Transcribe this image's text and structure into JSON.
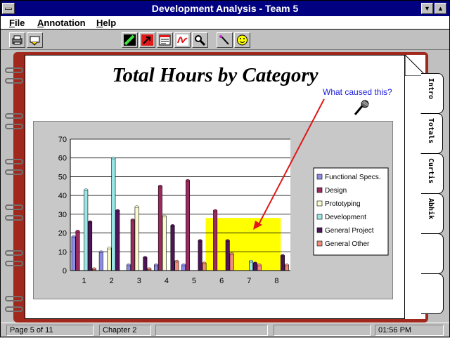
{
  "window": {
    "title": "Development Analysis - Team 5"
  },
  "menu": [
    "File",
    "Annotation",
    "Help"
  ],
  "toolbar": {
    "left_icons": [
      "printer-icon",
      "print-setup-icon"
    ],
    "mid_icons": [
      "highlighter-icon",
      "arrow-tool-icon",
      "note-icon",
      "signature-icon",
      "magnifier-icon"
    ],
    "right_icons": [
      "wand-icon",
      "smiley-icon"
    ]
  },
  "page": {
    "title": "Total Hours by Category",
    "annotation": "What caused this?",
    "annotation_color": "#1a1adc"
  },
  "tabs": [
    "Intro",
    "Totals",
    "Curtis",
    "Abhik"
  ],
  "chart_data": {
    "type": "bar",
    "categories": [
      "1",
      "2",
      "3",
      "4",
      "5",
      "6",
      "7",
      "8"
    ],
    "ylim": [
      0,
      70
    ],
    "yticks": [
      0,
      10,
      20,
      30,
      40,
      50,
      60,
      70
    ],
    "grid": true,
    "legend_position": "right",
    "series": [
      {
        "name": "Functional Specs.",
        "color": "#8c8ce6",
        "values": [
          18,
          10,
          3,
          3,
          3,
          0,
          0,
          0
        ]
      },
      {
        "name": "Design",
        "color": "#9c2a5e",
        "values": [
          21,
          0,
          27,
          45,
          48,
          32,
          0,
          0
        ]
      },
      {
        "name": "Prototyping",
        "color": "#fafacc",
        "values": [
          0,
          12,
          34,
          29,
          0,
          0,
          0,
          0
        ]
      },
      {
        "name": "Development",
        "color": "#9ae6e6",
        "values": [
          43,
          60,
          0,
          0,
          0,
          0,
          5,
          0
        ]
      },
      {
        "name": "General Project",
        "color": "#50145a",
        "values": [
          26,
          32,
          7,
          24,
          16,
          16,
          4,
          8
        ]
      },
      {
        "name": "General Other",
        "color": "#f08c78",
        "values": [
          1,
          0,
          1,
          5,
          4,
          9,
          3,
          3
        ]
      }
    ],
    "highlight": {
      "x_from": 6,
      "x_to": 8,
      "y_from": 0,
      "y_to": 28,
      "color": "#ffff00"
    }
  },
  "status": {
    "page": "Page 5 of 11",
    "chapter": "Chapter 2",
    "time": "01:56 PM"
  }
}
